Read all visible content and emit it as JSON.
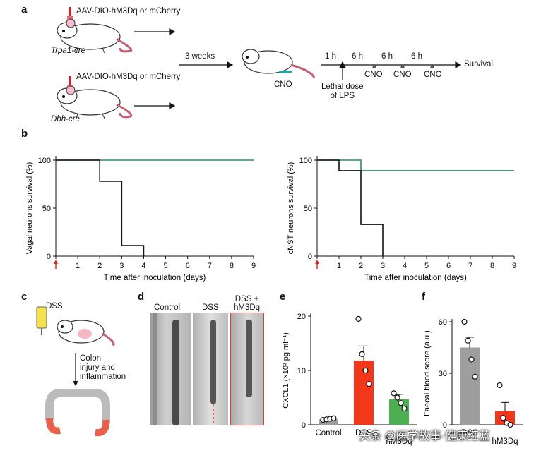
{
  "figure": {
    "panel_letters": {
      "a": "a",
      "b": "b",
      "c": "c",
      "d": "d",
      "e": "e",
      "f": "f"
    },
    "panel_a": {
      "virus_label": "AAV-DIO-hM3Dq or mCherry",
      "mouse_top": "Trpa1-cre",
      "mouse_bottom": "Dbh-cre",
      "weeks": "3 weeks",
      "cno": "CNO",
      "t1": "1 h",
      "t6": "6 h",
      "lps": "Lethal dose\nof LPS",
      "survival": "Survival"
    },
    "panel_c": {
      "dss": "DSS",
      "colon": "Colon\ninjury and\ninflammation"
    },
    "panel_d": {
      "labels": [
        "Control",
        "DSS",
        "DSS +\nhM3Dq"
      ]
    },
    "watermark": "头条 @医学故事·健康红蓝"
  },
  "chart_data": [
    {
      "id": "b-left",
      "type": "line",
      "xlabel": "Time after inoculation (days)",
      "ylabel": "Vagal neurons survival (%)",
      "xlim": [
        0,
        9
      ],
      "ylim": [
        0,
        100
      ],
      "xticks": [
        0,
        1,
        2,
        3,
        4,
        5,
        6,
        7,
        8,
        9
      ],
      "yticks": [
        0,
        50,
        100
      ],
      "colors": [
        "#2e8b57",
        "#111111"
      ],
      "series": [
        {
          "step_x": [
            0,
            9
          ],
          "step_y": [
            100,
            100
          ]
        },
        {
          "step_x": [
            0,
            2,
            3,
            4
          ],
          "step_y": [
            100,
            78,
            11,
            0
          ]
        }
      ]
    },
    {
      "id": "b-right",
      "type": "line",
      "xlabel": "Time after inoculation (days)",
      "ylabel": "cNST neurons survival (%)",
      "xlim": [
        0,
        9
      ],
      "ylim": [
        0,
        100
      ],
      "xticks": [
        0,
        1,
        2,
        3,
        4,
        5,
        6,
        7,
        8,
        9
      ],
      "yticks": [
        0,
        50,
        100
      ],
      "colors": [
        "#2e8b57",
        "#111111"
      ],
      "series": [
        {
          "step_x": [
            0,
            2,
            9
          ],
          "step_y": [
            100,
            89,
            89
          ]
        },
        {
          "step_x": [
            0,
            1,
            2,
            3
          ],
          "step_y": [
            100,
            89,
            33,
            0
          ]
        }
      ]
    },
    {
      "id": "e",
      "type": "bar",
      "ylabel": "CXCL1 (×10² pg ml⁻¹)",
      "ylim": [
        0,
        20
      ],
      "yticks": [
        0,
        10,
        20
      ],
      "categories": [
        "Control",
        "DSS",
        "hM3Dq"
      ],
      "values": [
        1.0,
        11.8,
        4.7
      ],
      "errors": [
        0.3,
        2.7,
        0.9
      ],
      "colors": [
        "#9e9e9e",
        "#f2371a",
        "#4caf50"
      ],
      "points": [
        [
          0.9,
          1.0,
          1.1,
          1.2
        ],
        [
          19.5,
          13.0,
          10.0,
          7.5
        ],
        [
          5.8,
          5.0,
          4.0,
          3.0
        ]
      ]
    },
    {
      "id": "f",
      "type": "bar",
      "ylabel": "Faecal blood score (a.u.)",
      "ylim": [
        0,
        60
      ],
      "yticks": [
        0,
        30,
        60
      ],
      "categories": [
        "DSS",
        "hM3Dq"
      ],
      "values": [
        45,
        8
      ],
      "errors": [
        6,
        5
      ],
      "colors": [
        "#9e9e9e",
        "#f2371a"
      ],
      "points": [
        [
          60,
          49,
          38,
          28
        ],
        [
          23,
          4,
          1,
          0
        ]
      ]
    }
  ]
}
